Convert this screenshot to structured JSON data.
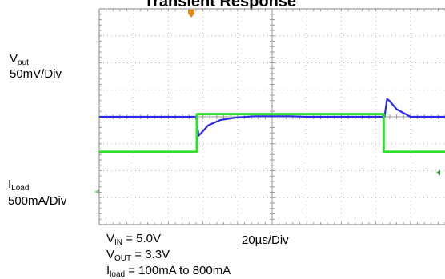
{
  "chart_data": [
    {
      "type": "line",
      "title": "Transient Response",
      "channel_label": {
        "base": "V",
        "sub": "out",
        "scale": "50mV/Div"
      },
      "x_scale": "20µs/Div",
      "x_unit": "µs",
      "y_unit": "mV",
      "divisions": {
        "x": 10,
        "y": 8
      },
      "xlim": [
        0,
        200
      ],
      "ylim": [
        -200,
        200
      ],
      "grid": true,
      "color": "#2b2be6",
      "series": [
        {
          "x": [
            0,
            56,
            57.5,
            59,
            63,
            70,
            80,
            90,
            100,
            110,
            120,
            130,
            140,
            150,
            160,
            165,
            166.5,
            168,
            172,
            180,
            190,
            200
          ],
          "y": [
            0,
            0,
            -35,
            -30,
            -16,
            -6,
            -1,
            1,
            1,
            1,
            0,
            0,
            0,
            0,
            0,
            0,
            33,
            29,
            14,
            0,
            0,
            0
          ]
        }
      ]
    },
    {
      "type": "line",
      "channel_label": {
        "base": "I",
        "sub": "Load",
        "scale": "500mA/Div"
      },
      "x_scale": "20µs/Div",
      "x_unit": "µs",
      "y_unit": "mA",
      "divisions": {
        "x": 10,
        "y": 8
      },
      "xlim": [
        0,
        200
      ],
      "ylim": [
        -1250,
        2750
      ],
      "grid": true,
      "color": "#2ee02e",
      "series": [
        {
          "x": [
            0,
            56.5,
            56.5,
            164.5,
            164.5,
            200
          ],
          "y": [
            100,
            100,
            800,
            800,
            100,
            100
          ]
        }
      ]
    }
  ],
  "conditions": {
    "vin": {
      "base": "V",
      "sub": "IN",
      "value": " = 5.0V"
    },
    "vout": {
      "base": "V",
      "sub": "OUT",
      "value": " = 3.3V"
    },
    "iload": {
      "base": "I",
      "sub": "load",
      "value": " = 100mA to 800mA"
    }
  },
  "timebase": {
    "text": "20µs/Div"
  },
  "colors": {
    "grid": "#b8b8b8",
    "frame": "#9a9a9a",
    "trigger_marker": "#e08a1a",
    "level_marker": "#2e9e2e"
  }
}
